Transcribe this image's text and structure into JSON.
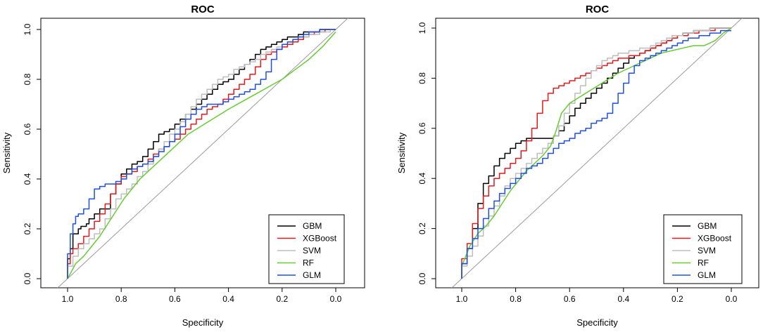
{
  "chart_data": [
    {
      "type": "line",
      "title": "ROC",
      "xlabel": "Specificity",
      "ylabel": "Sensitivity",
      "xlim": [
        1.0,
        0.0
      ],
      "ylim": [
        0.0,
        1.0
      ],
      "x_ticks": [
        "1.0",
        "0.8",
        "0.6",
        "0.4",
        "0.2",
        "0.0"
      ],
      "y_ticks": [
        "0.0",
        "0.2",
        "0.4",
        "0.6",
        "0.8",
        "1.0"
      ],
      "legend_position": "bottom-right",
      "reference_line": "diagonal",
      "series": [
        {
          "name": "GBM",
          "color": "#000000",
          "step": true,
          "x": [
            1.0,
            0.99,
            0.98,
            0.96,
            0.95,
            0.93,
            0.92,
            0.9,
            0.88,
            0.86,
            0.84,
            0.82,
            0.8,
            0.78,
            0.76,
            0.74,
            0.72,
            0.7,
            0.68,
            0.66,
            0.64,
            0.62,
            0.6,
            0.58,
            0.56,
            0.54,
            0.52,
            0.5,
            0.48,
            0.46,
            0.44,
            0.42,
            0.4,
            0.38,
            0.36,
            0.34,
            0.32,
            0.3,
            0.28,
            0.26,
            0.24,
            0.22,
            0.2,
            0.18,
            0.16,
            0.14,
            0.12,
            0.1,
            0.08,
            0.06,
            0.04,
            0.02,
            0.0
          ],
          "y": [
            0.0,
            0.08,
            0.12,
            0.18,
            0.2,
            0.21,
            0.22,
            0.24,
            0.26,
            0.28,
            0.28,
            0.34,
            0.38,
            0.42,
            0.44,
            0.46,
            0.47,
            0.49,
            0.52,
            0.55,
            0.58,
            0.59,
            0.6,
            0.62,
            0.64,
            0.66,
            0.68,
            0.7,
            0.72,
            0.74,
            0.76,
            0.78,
            0.79,
            0.8,
            0.82,
            0.84,
            0.86,
            0.88,
            0.9,
            0.92,
            0.93,
            0.94,
            0.95,
            0.96,
            0.97,
            0.97,
            0.98,
            0.99,
            0.99,
            0.99,
            1.0,
            1.0,
            1.0
          ]
        },
        {
          "name": "XGBoost",
          "color": "#e31a1c",
          "step": true,
          "x": [
            1.0,
            0.99,
            0.98,
            0.96,
            0.94,
            0.92,
            0.9,
            0.88,
            0.86,
            0.84,
            0.82,
            0.8,
            0.78,
            0.76,
            0.74,
            0.72,
            0.7,
            0.68,
            0.66,
            0.64,
            0.62,
            0.6,
            0.58,
            0.56,
            0.54,
            0.52,
            0.5,
            0.48,
            0.46,
            0.44,
            0.42,
            0.4,
            0.38,
            0.36,
            0.34,
            0.32,
            0.3,
            0.28,
            0.26,
            0.24,
            0.22,
            0.2,
            0.18,
            0.16,
            0.14,
            0.12,
            0.1,
            0.08,
            0.06,
            0.04,
            0.02,
            0.0
          ],
          "y": [
            0.0,
            0.06,
            0.1,
            0.12,
            0.14,
            0.17,
            0.2,
            0.23,
            0.26,
            0.3,
            0.34,
            0.38,
            0.41,
            0.42,
            0.43,
            0.45,
            0.46,
            0.48,
            0.5,
            0.52,
            0.53,
            0.55,
            0.56,
            0.58,
            0.6,
            0.62,
            0.64,
            0.66,
            0.68,
            0.69,
            0.7,
            0.72,
            0.74,
            0.76,
            0.78,
            0.8,
            0.82,
            0.85,
            0.88,
            0.9,
            0.91,
            0.92,
            0.93,
            0.94,
            0.95,
            0.96,
            0.97,
            0.98,
            0.99,
            0.99,
            1.0,
            1.0
          ]
        },
        {
          "name": "SVM",
          "color": "#bdbdbd",
          "step": true,
          "x": [
            1.0,
            0.98,
            0.96,
            0.94,
            0.92,
            0.9,
            0.88,
            0.86,
            0.84,
            0.82,
            0.8,
            0.78,
            0.76,
            0.74,
            0.72,
            0.7,
            0.68,
            0.66,
            0.64,
            0.62,
            0.6,
            0.58,
            0.56,
            0.54,
            0.52,
            0.5,
            0.48,
            0.46,
            0.44,
            0.42,
            0.4,
            0.38,
            0.36,
            0.34,
            0.32,
            0.3,
            0.28,
            0.26,
            0.24,
            0.22,
            0.2,
            0.18,
            0.16,
            0.14,
            0.12,
            0.1,
            0.08,
            0.06,
            0.04,
            0.02,
            0.0
          ],
          "y": [
            0.0,
            0.05,
            0.09,
            0.12,
            0.14,
            0.16,
            0.18,
            0.2,
            0.24,
            0.28,
            0.32,
            0.34,
            0.36,
            0.38,
            0.41,
            0.43,
            0.46,
            0.49,
            0.52,
            0.55,
            0.58,
            0.6,
            0.63,
            0.66,
            0.69,
            0.72,
            0.74,
            0.76,
            0.78,
            0.8,
            0.81,
            0.82,
            0.84,
            0.85,
            0.86,
            0.87,
            0.88,
            0.9,
            0.91,
            0.92,
            0.93,
            0.94,
            0.95,
            0.96,
            0.97,
            0.97,
            0.98,
            0.98,
            0.99,
            0.99,
            1.0
          ]
        },
        {
          "name": "RF",
          "color": "#66cc33",
          "step": false,
          "x": [
            1.0,
            0.97,
            0.94,
            0.91,
            0.88,
            0.85,
            0.82,
            0.79,
            0.76,
            0.73,
            0.7,
            0.67,
            0.64,
            0.61,
            0.58,
            0.55,
            0.52,
            0.49,
            0.46,
            0.43,
            0.4,
            0.35,
            0.3,
            0.25,
            0.2,
            0.15,
            0.1,
            0.05,
            0.0
          ],
          "y": [
            0.0,
            0.06,
            0.09,
            0.13,
            0.17,
            0.22,
            0.27,
            0.32,
            0.36,
            0.4,
            0.43,
            0.46,
            0.49,
            0.52,
            0.55,
            0.58,
            0.6,
            0.62,
            0.64,
            0.66,
            0.68,
            0.71,
            0.74,
            0.77,
            0.8,
            0.84,
            0.88,
            0.93,
            0.99
          ]
        },
        {
          "name": "GLM",
          "color": "#1f4fe0",
          "step": true,
          "x": [
            1.0,
            0.99,
            0.98,
            0.97,
            0.96,
            0.94,
            0.92,
            0.9,
            0.88,
            0.86,
            0.84,
            0.82,
            0.8,
            0.78,
            0.76,
            0.74,
            0.72,
            0.7,
            0.68,
            0.66,
            0.64,
            0.62,
            0.6,
            0.58,
            0.56,
            0.54,
            0.52,
            0.5,
            0.48,
            0.46,
            0.44,
            0.42,
            0.4,
            0.38,
            0.36,
            0.34,
            0.32,
            0.3,
            0.28,
            0.26,
            0.24,
            0.22,
            0.2,
            0.18,
            0.16,
            0.14,
            0.12,
            0.1,
            0.08,
            0.06,
            0.04,
            0.02,
            0.0
          ],
          "y": [
            0.0,
            0.1,
            0.18,
            0.22,
            0.25,
            0.26,
            0.28,
            0.32,
            0.36,
            0.37,
            0.38,
            0.38,
            0.39,
            0.4,
            0.42,
            0.44,
            0.45,
            0.46,
            0.47,
            0.49,
            0.51,
            0.53,
            0.55,
            0.58,
            0.61,
            0.64,
            0.66,
            0.68,
            0.69,
            0.7,
            0.7,
            0.7,
            0.71,
            0.72,
            0.73,
            0.74,
            0.75,
            0.76,
            0.78,
            0.8,
            0.83,
            0.88,
            0.92,
            0.94,
            0.95,
            0.96,
            0.97,
            0.98,
            0.99,
            0.99,
            1.0,
            1.0,
            1.0
          ]
        }
      ]
    },
    {
      "type": "line",
      "title": "ROC",
      "xlabel": "Specificity",
      "ylabel": "Sensitivity",
      "xlim": [
        1.0,
        0.0
      ],
      "ylim": [
        0.0,
        1.0
      ],
      "x_ticks": [
        "1.0",
        "0.8",
        "0.6",
        "0.4",
        "0.2",
        "0.0"
      ],
      "y_ticks": [
        "0.0",
        "0.2",
        "0.4",
        "0.6",
        "0.8",
        "1.0"
      ],
      "legend_position": "bottom-right",
      "reference_line": "diagonal",
      "series": [
        {
          "name": "GBM",
          "color": "#000000",
          "step": true,
          "x": [
            1.0,
            0.98,
            0.96,
            0.94,
            0.92,
            0.9,
            0.88,
            0.86,
            0.84,
            0.82,
            0.8,
            0.78,
            0.76,
            0.74,
            0.72,
            0.7,
            0.68,
            0.66,
            0.64,
            0.62,
            0.6,
            0.58,
            0.56,
            0.54,
            0.52,
            0.5,
            0.48,
            0.46,
            0.44,
            0.42,
            0.4,
            0.38,
            0.36,
            0.34,
            0.32,
            0.3,
            0.28,
            0.26,
            0.24,
            0.22,
            0.2,
            0.18,
            0.16,
            0.14,
            0.12,
            0.1,
            0.08,
            0.06,
            0.04,
            0.02,
            0.0
          ],
          "y": [
            0.0,
            0.06,
            0.12,
            0.2,
            0.3,
            0.38,
            0.41,
            0.45,
            0.48,
            0.5,
            0.52,
            0.54,
            0.55,
            0.56,
            0.56,
            0.56,
            0.56,
            0.56,
            0.57,
            0.59,
            0.62,
            0.65,
            0.68,
            0.7,
            0.72,
            0.74,
            0.76,
            0.78,
            0.8,
            0.82,
            0.84,
            0.86,
            0.88,
            0.89,
            0.9,
            0.91,
            0.92,
            0.93,
            0.94,
            0.95,
            0.96,
            0.97,
            0.98,
            0.98,
            0.99,
            0.99,
            0.99,
            1.0,
            1.0,
            1.0,
            1.0
          ]
        },
        {
          "name": "XGBoost",
          "color": "#e31a1c",
          "step": true,
          "x": [
            1.0,
            0.98,
            0.96,
            0.94,
            0.92,
            0.9,
            0.88,
            0.86,
            0.84,
            0.82,
            0.8,
            0.78,
            0.76,
            0.74,
            0.72,
            0.7,
            0.68,
            0.66,
            0.64,
            0.62,
            0.6,
            0.58,
            0.56,
            0.54,
            0.52,
            0.5,
            0.48,
            0.46,
            0.44,
            0.42,
            0.4,
            0.38,
            0.36,
            0.34,
            0.32,
            0.3,
            0.28,
            0.26,
            0.24,
            0.22,
            0.2,
            0.18,
            0.16,
            0.14,
            0.12,
            0.1,
            0.08,
            0.06,
            0.04,
            0.02,
            0.0
          ],
          "y": [
            0.0,
            0.08,
            0.14,
            0.22,
            0.28,
            0.33,
            0.37,
            0.4,
            0.42,
            0.44,
            0.46,
            0.48,
            0.51,
            0.55,
            0.6,
            0.66,
            0.71,
            0.74,
            0.76,
            0.77,
            0.78,
            0.79,
            0.8,
            0.81,
            0.82,
            0.83,
            0.84,
            0.85,
            0.86,
            0.87,
            0.88,
            0.88,
            0.89,
            0.89,
            0.9,
            0.91,
            0.92,
            0.93,
            0.94,
            0.95,
            0.96,
            0.97,
            0.97,
            0.98,
            0.98,
            0.99,
            0.99,
            0.99,
            1.0,
            1.0,
            1.0
          ]
        },
        {
          "name": "SVM",
          "color": "#bdbdbd",
          "step": true,
          "x": [
            1.0,
            0.98,
            0.96,
            0.94,
            0.92,
            0.9,
            0.88,
            0.86,
            0.84,
            0.82,
            0.8,
            0.78,
            0.76,
            0.74,
            0.72,
            0.7,
            0.68,
            0.66,
            0.64,
            0.62,
            0.6,
            0.58,
            0.56,
            0.54,
            0.52,
            0.5,
            0.48,
            0.46,
            0.44,
            0.42,
            0.4,
            0.38,
            0.36,
            0.34,
            0.32,
            0.3,
            0.28,
            0.26,
            0.24,
            0.22,
            0.2,
            0.18,
            0.16,
            0.14,
            0.12,
            0.1,
            0.08,
            0.06,
            0.04,
            0.02,
            0.0
          ],
          "y": [
            0.0,
            0.05,
            0.09,
            0.13,
            0.17,
            0.21,
            0.25,
            0.29,
            0.33,
            0.37,
            0.4,
            0.42,
            0.44,
            0.46,
            0.48,
            0.5,
            0.52,
            0.54,
            0.57,
            0.61,
            0.66,
            0.7,
            0.74,
            0.77,
            0.8,
            0.83,
            0.85,
            0.87,
            0.88,
            0.89,
            0.9,
            0.9,
            0.91,
            0.91,
            0.92,
            0.92,
            0.93,
            0.94,
            0.95,
            0.96,
            0.97,
            0.97,
            0.98,
            0.98,
            0.99,
            0.99,
            0.99,
            1.0,
            1.0,
            1.0,
            1.0
          ]
        },
        {
          "name": "RF",
          "color": "#66cc33",
          "step": false,
          "x": [
            1.0,
            0.97,
            0.94,
            0.91,
            0.88,
            0.85,
            0.82,
            0.79,
            0.76,
            0.73,
            0.7,
            0.67,
            0.65,
            0.63,
            0.6,
            0.57,
            0.54,
            0.51,
            0.48,
            0.45,
            0.42,
            0.38,
            0.34,
            0.3,
            0.26,
            0.22,
            0.18,
            0.14,
            0.1,
            0.06,
            0.03,
            0.0
          ],
          "y": [
            0.05,
            0.13,
            0.18,
            0.21,
            0.25,
            0.3,
            0.35,
            0.39,
            0.43,
            0.46,
            0.49,
            0.53,
            0.59,
            0.66,
            0.7,
            0.72,
            0.74,
            0.76,
            0.78,
            0.8,
            0.82,
            0.84,
            0.86,
            0.88,
            0.9,
            0.91,
            0.92,
            0.93,
            0.93,
            0.95,
            0.98,
            1.0
          ]
        },
        {
          "name": "GLM",
          "color": "#1f4fe0",
          "step": true,
          "x": [
            1.0,
            0.98,
            0.96,
            0.94,
            0.92,
            0.9,
            0.88,
            0.86,
            0.84,
            0.82,
            0.8,
            0.78,
            0.76,
            0.74,
            0.72,
            0.7,
            0.68,
            0.66,
            0.64,
            0.62,
            0.6,
            0.58,
            0.56,
            0.54,
            0.52,
            0.5,
            0.48,
            0.46,
            0.44,
            0.42,
            0.4,
            0.38,
            0.36,
            0.34,
            0.32,
            0.3,
            0.28,
            0.26,
            0.24,
            0.22,
            0.2,
            0.18,
            0.16,
            0.14,
            0.12,
            0.1,
            0.08,
            0.06,
            0.04,
            0.02,
            0.0
          ],
          "y": [
            0.0,
            0.06,
            0.12,
            0.16,
            0.2,
            0.24,
            0.28,
            0.31,
            0.34,
            0.36,
            0.38,
            0.4,
            0.42,
            0.44,
            0.45,
            0.46,
            0.48,
            0.5,
            0.52,
            0.54,
            0.55,
            0.56,
            0.58,
            0.59,
            0.6,
            0.62,
            0.63,
            0.64,
            0.66,
            0.7,
            0.74,
            0.78,
            0.82,
            0.85,
            0.87,
            0.88,
            0.89,
            0.9,
            0.91,
            0.92,
            0.93,
            0.94,
            0.95,
            0.96,
            0.96,
            0.97,
            0.97,
            0.98,
            0.98,
            0.99,
            0.99
          ]
        }
      ]
    }
  ]
}
